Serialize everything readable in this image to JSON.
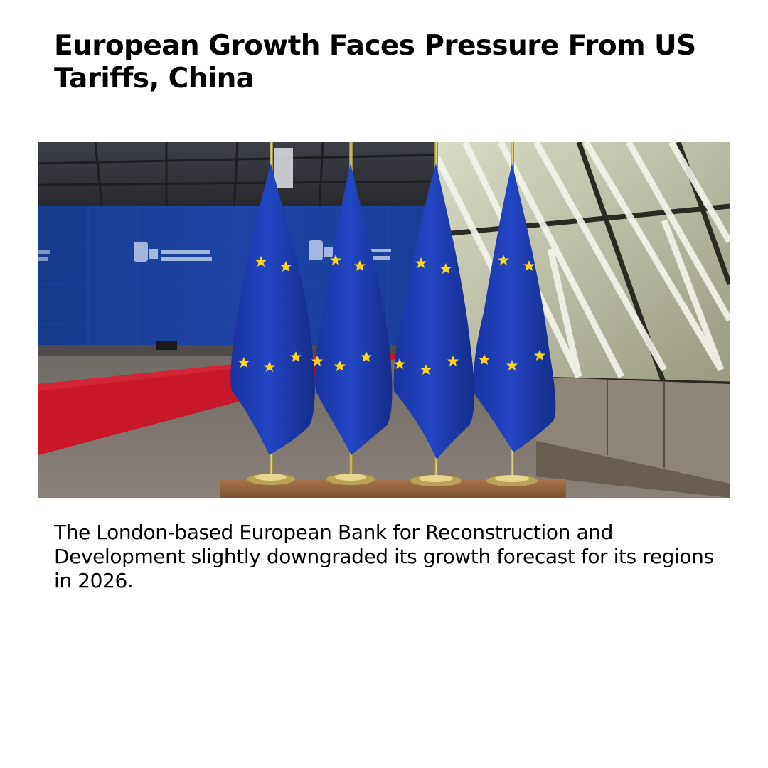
{
  "article": {
    "headline": "European Growth Faces Pressure From US Tariffs, China",
    "summary": "The London-based European Bank for Reconstruction and Development slightly downgraded its growth forecast for its regions in 2026."
  },
  "image": {
    "alt": "EU flags",
    "backdrop_signs": [
      "European Council",
      "Conseil européen"
    ],
    "flag_count": 4,
    "colors": {
      "flag_blue": "#1d3ca6",
      "star_yellow": "#ffd617",
      "carpet_red": "#c8172b",
      "backdrop_blue": "#1b3f99"
    }
  }
}
